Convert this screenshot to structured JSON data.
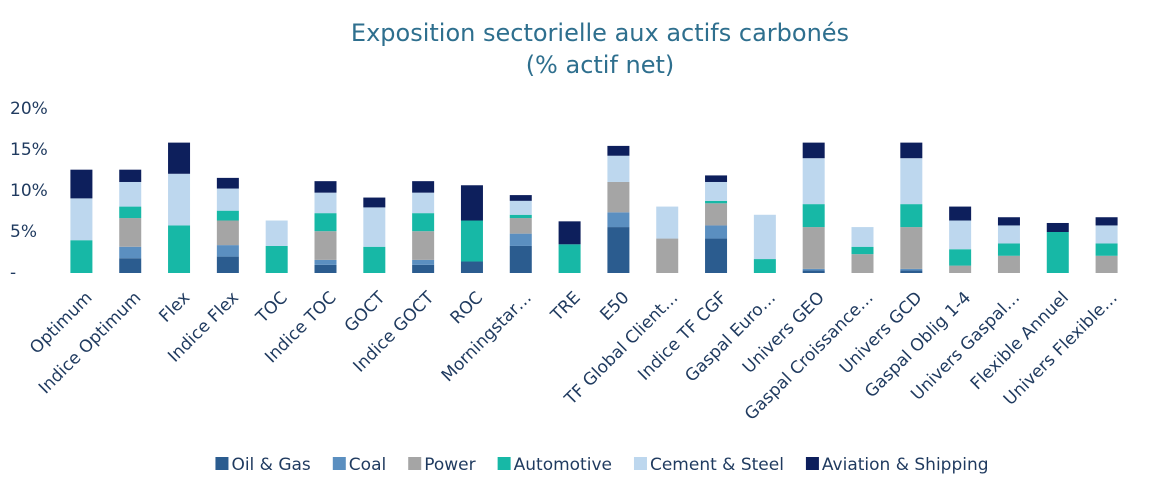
{
  "chart_data": {
    "type": "bar",
    "stacked": true,
    "title": [
      "Exposition sectorielle aux actifs carbonés",
      "(% actif net)"
    ],
    "categories": [
      "Optimum",
      "Indice Optimum",
      "Flex",
      "Indice Flex",
      "TOC",
      "Indice TOC",
      "GOCT",
      "Indice GOCT",
      "ROC",
      "Morningstar…",
      "TRE",
      "E50",
      "TF Global Client…",
      "Indice TF CGF",
      "Gaspal Euro…",
      "Univers GEO",
      "Gaspal Croissance…",
      "Univers GCD",
      "Gaspal Oblig 1-4",
      "Univers Gaspal…",
      "Flexible Annuel",
      "Univers Flexible…"
    ],
    "series": [
      {
        "name": "Oil & Gas",
        "color": "#2b5c8f",
        "values": [
          0,
          1.8,
          0,
          2.0,
          0,
          1.0,
          0,
          1.0,
          1.4,
          3.3,
          0,
          5.6,
          0,
          4.2,
          0,
          0.3,
          0,
          0.3,
          0,
          0,
          0,
          0
        ]
      },
      {
        "name": "Coal",
        "color": "#5b8fc0",
        "values": [
          0,
          1.4,
          0,
          1.4,
          0,
          0.6,
          0,
          0.6,
          0,
          1.5,
          0,
          1.8,
          0,
          1.6,
          0,
          0.2,
          0,
          0.2,
          0,
          0,
          0,
          0
        ]
      },
      {
        "name": "Power",
        "color": "#a5a5a5",
        "values": [
          0,
          3.5,
          0,
          3.0,
          0,
          3.5,
          0,
          3.5,
          0,
          1.9,
          0,
          3.7,
          4.2,
          2.7,
          0,
          5.1,
          2.3,
          5.1,
          0.9,
          2.1,
          0,
          2.1
        ]
      },
      {
        "name": "Automotive",
        "color": "#17b8a6",
        "values": [
          4.0,
          1.4,
          5.8,
          1.2,
          3.3,
          2.2,
          3.2,
          2.2,
          5.0,
          0.4,
          3.5,
          0,
          0,
          0.3,
          1.7,
          2.8,
          0.9,
          2.8,
          2.0,
          1.5,
          5.0,
          1.5
        ]
      },
      {
        "name": "Cement & Steel",
        "color": "#bdd7ee",
        "values": [
          5.1,
          3.0,
          6.3,
          2.7,
          3.1,
          2.5,
          4.8,
          2.5,
          0,
          1.7,
          0,
          3.2,
          3.9,
          2.3,
          5.4,
          5.6,
          2.4,
          5.6,
          3.5,
          2.2,
          0,
          2.2
        ]
      },
      {
        "name": "Aviation & Shipping",
        "color": "#0d1f5c",
        "values": [
          3.5,
          1.5,
          3.8,
          1.3,
          0,
          1.4,
          1.2,
          1.4,
          4.3,
          0.7,
          2.8,
          1.2,
          0,
          0.8,
          0,
          1.9,
          0,
          1.9,
          1.7,
          1.0,
          1.1,
          1.0
        ]
      }
    ],
    "ylim": [
      0,
      20
    ],
    "yticks": [
      {
        "value": 0,
        "label": "-"
      },
      {
        "value": 5,
        "label": "5%"
      },
      {
        "value": 10,
        "label": "10%"
      },
      {
        "value": 15,
        "label": "15%"
      },
      {
        "value": 20,
        "label": "20%"
      }
    ],
    "legend": "bottom"
  }
}
